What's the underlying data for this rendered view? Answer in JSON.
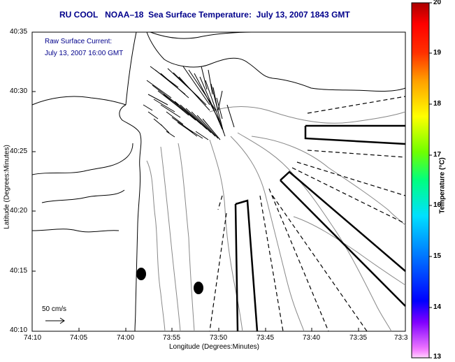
{
  "map": {
    "title": "RU COOL   NOAA–18  Sea Surface Temperature:  July 13, 2007 1843 GMT",
    "inset_line1": "Raw Surface Current:",
    "inset_line2": "July 13, 2007 16:00 GMT",
    "scale_label": "50 cm/s",
    "x_axis_label": "Longitude (Degrees:Minutes)",
    "y_axis_label": "Latitude (Degrees:Minutes)",
    "x_ticks": [
      "74:10",
      "74:05",
      "74:00",
      "73:55",
      "73:50",
      "73:45",
      "73:40",
      "73:35",
      "73:3"
    ],
    "y_ticks": [
      "40:35",
      "40:30",
      "40:25",
      "40:20",
      "40:15",
      "40:10"
    ]
  },
  "colorbar": {
    "label": "Temperature (°C)",
    "ticks": [
      "20",
      "19",
      "18",
      "17",
      "16",
      "15",
      "14",
      "13"
    ],
    "range": [
      13,
      20
    ]
  }
}
